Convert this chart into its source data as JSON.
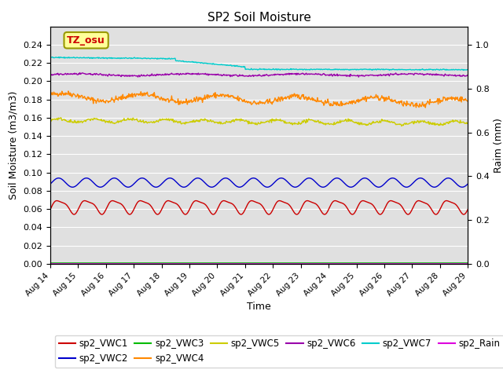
{
  "title": "SP2 Soil Moisture",
  "xlabel": "Time",
  "ylabel_left": "Soil Moisture (m3/m3)",
  "ylabel_right": "Raim (mm)",
  "x_tick_labels": [
    "Aug 14",
    "Aug 15",
    "Aug 16",
    "Aug 17",
    "Aug 18",
    "Aug 19",
    "Aug 20",
    "Aug 21",
    "Aug 22",
    "Aug 23",
    "Aug 24",
    "Aug 25",
    "Aug 26",
    "Aug 27",
    "Aug 28",
    "Aug 29"
  ],
  "ylim_left": [
    0,
    0.26
  ],
  "ylim_right": [
    0.0,
    1.0833
  ],
  "yticks_left": [
    0.0,
    0.02,
    0.04,
    0.06,
    0.08,
    0.1,
    0.12,
    0.14,
    0.16,
    0.18,
    0.2,
    0.22,
    0.24
  ],
  "yticks_right": [
    0.0,
    0.2,
    0.4,
    0.6,
    0.8,
    1.0
  ],
  "colors": {
    "sp2_VWC1": "#cc0000",
    "sp2_VWC2": "#0000cc",
    "sp2_VWC3": "#00bb00",
    "sp2_VWC4": "#ff8800",
    "sp2_VWC5": "#cccc00",
    "sp2_VWC6": "#9900aa",
    "sp2_VWC7": "#00cccc",
    "sp2_Rain": "#dd00dd"
  },
  "annotation_text": "TZ_osu",
  "annotation_color": "#cc0000",
  "annotation_bg": "#ffff99",
  "annotation_border": "#999900",
  "background_color": "#e0e0e0",
  "n_points": 720,
  "period_days": 1.0
}
